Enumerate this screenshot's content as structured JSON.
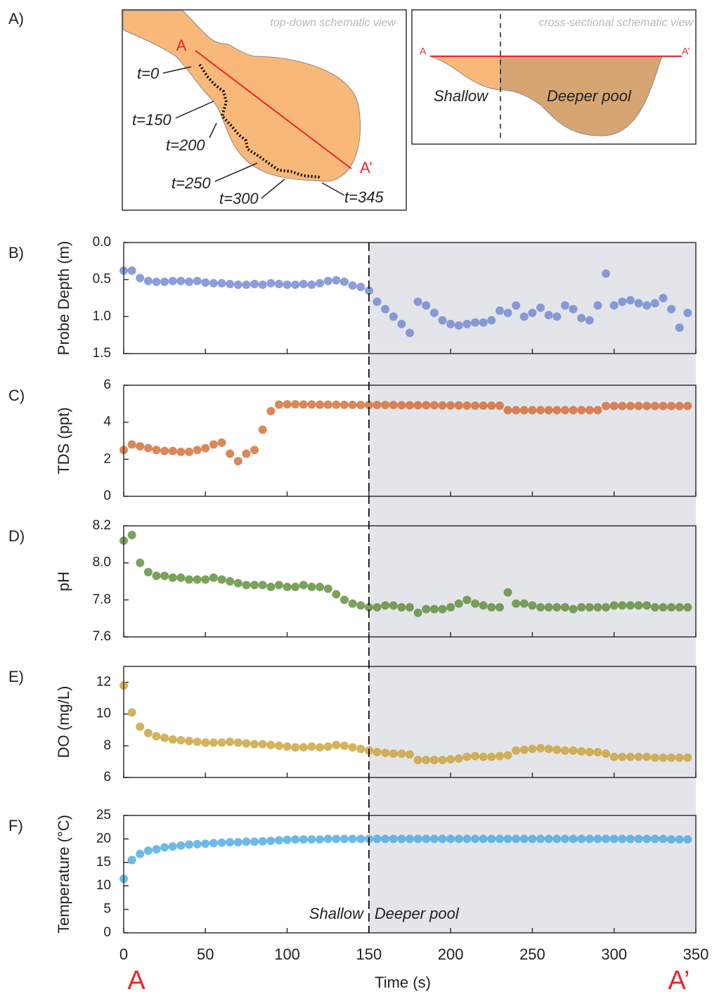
{
  "schematic": {
    "panel": "A)",
    "top_title": "top-down schematic view",
    "top_start": "A",
    "top_end": "A’",
    "times": [
      "t=0",
      "t=150",
      "t=200",
      "t=250",
      "t=300",
      "t=345"
    ],
    "cross_title": "cross-sectional schematic view",
    "cross_start": "A",
    "cross_end": "A’",
    "cross_shallow": "Shallow",
    "cross_deep": "Deeper pool"
  },
  "figure": {
    "xlim": [
      0,
      350
    ],
    "xticks": [
      0,
      50,
      100,
      150,
      200,
      250,
      300,
      350
    ],
    "xlabel": "Time (s)",
    "divider_x": 150,
    "region_labels": [
      "Shallow",
      "Deeper pool"
    ],
    "end_labels": [
      "A",
      "A’"
    ]
  },
  "chart_data": [
    {
      "type": "scatter",
      "panel": "B)",
      "ylabel": "Probe Depth (m)",
      "color": "#6f86d0",
      "ylim": [
        1.5,
        0
      ],
      "yticks": [
        {
          "value": 0,
          "label": "0.0"
        },
        0.5,
        {
          "value": 1,
          "label": "1.0"
        },
        1.5
      ],
      "x": [
        0,
        5,
        10,
        15,
        20,
        25,
        30,
        35,
        40,
        45,
        50,
        55,
        60,
        65,
        70,
        75,
        80,
        85,
        90,
        95,
        100,
        105,
        110,
        115,
        120,
        125,
        130,
        135,
        140,
        145,
        150,
        155,
        160,
        165,
        170,
        175,
        180,
        185,
        190,
        195,
        200,
        205,
        210,
        215,
        220,
        225,
        230,
        235,
        240,
        245,
        250,
        255,
        260,
        265,
        270,
        275,
        280,
        285,
        290,
        295,
        300,
        305,
        310,
        315,
        320,
        325,
        330,
        335,
        340,
        345
      ],
      "values": [
        0.38,
        0.38,
        0.48,
        0.52,
        0.53,
        0.53,
        0.52,
        0.52,
        0.53,
        0.52,
        0.54,
        0.55,
        0.55,
        0.56,
        0.57,
        0.57,
        0.56,
        0.57,
        0.55,
        0.56,
        0.57,
        0.57,
        0.56,
        0.57,
        0.55,
        0.52,
        0.51,
        0.53,
        0.58,
        0.6,
        0.65,
        0.8,
        0.9,
        1.0,
        1.1,
        1.22,
        0.8,
        0.85,
        0.95,
        1.05,
        1.1,
        1.12,
        1.1,
        1.08,
        1.08,
        1.05,
        0.92,
        0.95,
        0.85,
        1.0,
        0.95,
        0.88,
        0.98,
        1.0,
        0.85,
        0.9,
        1.02,
        1.05,
        0.85,
        0.42,
        0.85,
        0.8,
        0.78,
        0.82,
        0.85,
        0.82,
        0.75,
        0.9,
        1.15,
        0.95
      ]
    },
    {
      "type": "scatter",
      "panel": "C)",
      "ylabel": "TDS (ppt)",
      "color": "#d2692e",
      "ylim": [
        0,
        6
      ],
      "yticks": [
        0,
        2,
        4,
        6
      ],
      "x": [
        0,
        5,
        10,
        15,
        20,
        25,
        30,
        35,
        40,
        45,
        50,
        55,
        60,
        65,
        70,
        75,
        80,
        85,
        90,
        95,
        100,
        105,
        110,
        115,
        120,
        125,
        130,
        135,
        140,
        145,
        150,
        155,
        160,
        165,
        170,
        175,
        180,
        185,
        190,
        195,
        200,
        205,
        210,
        215,
        220,
        225,
        230,
        235,
        240,
        245,
        250,
        255,
        260,
        265,
        270,
        275,
        280,
        285,
        290,
        295,
        300,
        305,
        310,
        315,
        320,
        325,
        330,
        335,
        340,
        345
      ],
      "values": [
        2.5,
        2.8,
        2.7,
        2.6,
        2.5,
        2.45,
        2.45,
        2.4,
        2.4,
        2.5,
        2.6,
        2.8,
        2.9,
        2.3,
        1.9,
        2.3,
        2.5,
        3.6,
        4.6,
        4.95,
        4.97,
        4.97,
        4.96,
        4.96,
        4.95,
        4.95,
        4.95,
        4.94,
        4.94,
        4.93,
        4.93,
        4.93,
        4.93,
        4.93,
        4.92,
        4.92,
        4.92,
        4.92,
        4.92,
        4.91,
        4.91,
        4.91,
        4.9,
        4.9,
        4.9,
        4.9,
        4.9,
        4.65,
        4.65,
        4.65,
        4.65,
        4.65,
        4.65,
        4.65,
        4.65,
        4.65,
        4.65,
        4.65,
        4.65,
        4.88,
        4.88,
        4.88,
        4.88,
        4.88,
        4.88,
        4.88,
        4.88,
        4.88,
        4.88,
        4.88
      ]
    },
    {
      "type": "scatter",
      "panel": "D)",
      "ylabel": "pH",
      "color": "#5a8a35",
      "ylim": [
        7.6,
        8.2
      ],
      "yticks": [
        7.6,
        7.8,
        {
          "value": 8,
          "label": "8.0"
        },
        8.2
      ],
      "x": [
        0,
        5,
        10,
        15,
        20,
        25,
        30,
        35,
        40,
        45,
        50,
        55,
        60,
        65,
        70,
        75,
        80,
        85,
        90,
        95,
        100,
        105,
        110,
        115,
        120,
        125,
        130,
        135,
        140,
        145,
        150,
        155,
        160,
        165,
        170,
        175,
        180,
        185,
        190,
        195,
        200,
        205,
        210,
        215,
        220,
        225,
        230,
        235,
        240,
        245,
        250,
        255,
        260,
        265,
        270,
        275,
        280,
        285,
        290,
        295,
        300,
        305,
        310,
        315,
        320,
        325,
        330,
        335,
        340,
        345
      ],
      "values": [
        8.12,
        8.15,
        8.0,
        7.95,
        7.93,
        7.93,
        7.92,
        7.92,
        7.91,
        7.91,
        7.91,
        7.92,
        7.91,
        7.9,
        7.89,
        7.88,
        7.88,
        7.88,
        7.87,
        7.88,
        7.87,
        7.87,
        7.88,
        7.87,
        7.87,
        7.86,
        7.83,
        7.8,
        7.78,
        7.77,
        7.76,
        7.76,
        7.77,
        7.77,
        7.76,
        7.76,
        7.73,
        7.75,
        7.75,
        7.75,
        7.76,
        7.78,
        7.8,
        7.78,
        7.77,
        7.76,
        7.76,
        7.84,
        7.78,
        7.78,
        7.77,
        7.76,
        7.76,
        7.76,
        7.76,
        7.75,
        7.76,
        7.76,
        7.76,
        7.76,
        7.77,
        7.77,
        7.77,
        7.77,
        7.77,
        7.76,
        7.76,
        7.76,
        7.76,
        7.76
      ]
    },
    {
      "type": "scatter",
      "panel": "E)",
      "ylabel": "DO (mg/L)",
      "color": "#c9a035",
      "ylim": [
        6,
        13
      ],
      "yticks": [
        6,
        8,
        10,
        12
      ],
      "x": [
        0,
        5,
        10,
        15,
        20,
        25,
        30,
        35,
        40,
        45,
        50,
        55,
        60,
        65,
        70,
        75,
        80,
        85,
        90,
        95,
        100,
        105,
        110,
        115,
        120,
        125,
        130,
        135,
        140,
        145,
        150,
        155,
        160,
        165,
        170,
        175,
        180,
        185,
        190,
        195,
        200,
        205,
        210,
        215,
        220,
        225,
        230,
        235,
        240,
        245,
        250,
        255,
        260,
        265,
        270,
        275,
        280,
        285,
        290,
        295,
        300,
        305,
        310,
        315,
        320,
        325,
        330,
        335,
        340,
        345
      ],
      "values": [
        11.8,
        10.1,
        9.2,
        8.8,
        8.6,
        8.5,
        8.4,
        8.35,
        8.3,
        8.25,
        8.2,
        8.2,
        8.2,
        8.25,
        8.2,
        8.15,
        8.1,
        8.1,
        8.05,
        8.0,
        7.95,
        7.9,
        7.9,
        7.95,
        7.9,
        7.95,
        8.05,
        8.0,
        7.9,
        7.8,
        7.7,
        7.6,
        7.55,
        7.5,
        7.5,
        7.45,
        7.1,
        7.1,
        7.1,
        7.1,
        7.15,
        7.2,
        7.3,
        7.35,
        7.3,
        7.3,
        7.35,
        7.4,
        7.7,
        7.75,
        7.8,
        7.85,
        7.8,
        7.75,
        7.7,
        7.7,
        7.65,
        7.6,
        7.6,
        7.5,
        7.3,
        7.3,
        7.3,
        7.3,
        7.3,
        7.25,
        7.25,
        7.25,
        7.25,
        7.25
      ]
    },
    {
      "type": "scatter",
      "panel": "F)",
      "ylabel": "Temperature (°C)",
      "color": "#4aa9e0",
      "ylim": [
        0,
        25
      ],
      "yticks": [
        0,
        5,
        10,
        15,
        20,
        25
      ],
      "x": [
        0,
        5,
        10,
        15,
        20,
        25,
        30,
        35,
        40,
        45,
        50,
        55,
        60,
        65,
        70,
        75,
        80,
        85,
        90,
        95,
        100,
        105,
        110,
        115,
        120,
        125,
        130,
        135,
        140,
        145,
        150,
        155,
        160,
        165,
        170,
        175,
        180,
        185,
        190,
        195,
        200,
        205,
        210,
        215,
        220,
        225,
        230,
        235,
        240,
        245,
        250,
        255,
        260,
        265,
        270,
        275,
        280,
        285,
        290,
        295,
        300,
        305,
        310,
        315,
        320,
        325,
        330,
        335,
        340,
        345
      ],
      "values": [
        11.5,
        15.5,
        16.8,
        17.5,
        17.8,
        18.2,
        18.4,
        18.6,
        18.8,
        18.9,
        19.0,
        19.1,
        19.2,
        19.3,
        19.3,
        19.4,
        19.4,
        19.5,
        19.6,
        19.7,
        19.8,
        19.9,
        19.9,
        19.9,
        19.9,
        20,
        20,
        20,
        20,
        20,
        20,
        20,
        20,
        20,
        20,
        20,
        20,
        20,
        20,
        20,
        20,
        20,
        20,
        20,
        20,
        20,
        20,
        20,
        20,
        20,
        20,
        20,
        20,
        20,
        20,
        20,
        20,
        20,
        20,
        20,
        20,
        20,
        20,
        20,
        20,
        20,
        20,
        19.9,
        19.9,
        19.9
      ]
    }
  ]
}
